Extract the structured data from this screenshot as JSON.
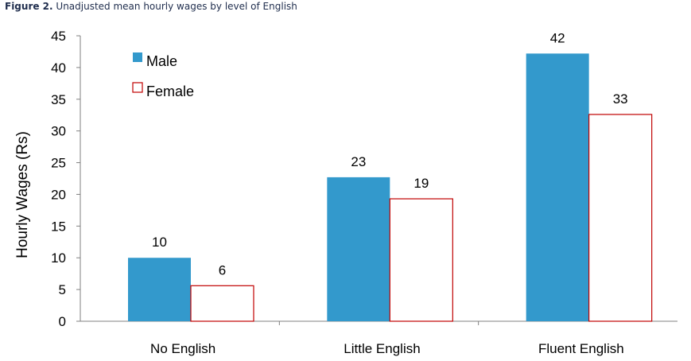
{
  "figure": {
    "label": "Figure 2.",
    "text": " Unadjusted mean hourly wages by level of English"
  },
  "chart_data": {
    "type": "bar",
    "title": "Figure 2. Unadjusted mean hourly wages by level of English",
    "xlabel": "",
    "ylabel": "Hourly Wages (Rs)",
    "categories": [
      "No English",
      "Little English",
      "Fluent English"
    ],
    "series": [
      {
        "name": "Male",
        "values": [
          10,
          22.7,
          42.2
        ],
        "labels": [
          "10",
          "23",
          "42"
        ],
        "color": "#3399cc"
      },
      {
        "name": "Female",
        "values": [
          5.6,
          19.3,
          32.6
        ],
        "labels": [
          "6",
          "19",
          "33"
        ],
        "color": "#ffffff",
        "stroke": "#c00000"
      }
    ],
    "ylim": [
      0,
      45
    ],
    "yticks": [
      "0",
      "5",
      "10",
      "15",
      "20",
      "25",
      "30",
      "35",
      "40",
      "45"
    ],
    "grid": false,
    "legend": "top-left"
  }
}
